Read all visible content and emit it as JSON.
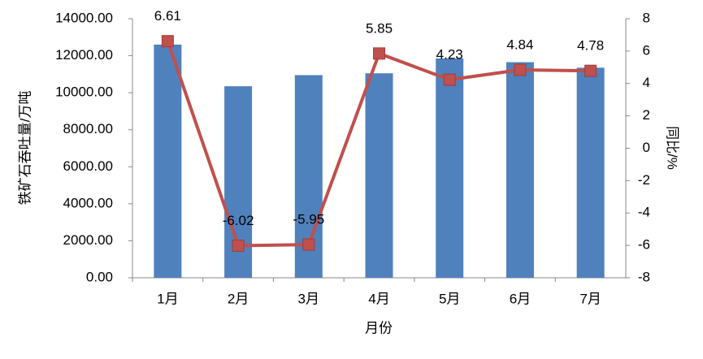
{
  "chart_data": {
    "type": "bar-line",
    "x_label": "月份",
    "y_label": "铁矿石吞吐量/万吨",
    "y2_label": "同比/%",
    "categories": [
      "1月",
      "2月",
      "3月",
      "4月",
      "5月",
      "6月",
      "7月"
    ],
    "series": [
      {
        "type": "bar",
        "color": "#4f81bd",
        "values": [
          12600,
          10350,
          10950,
          11050,
          11850,
          11650,
          11350
        ]
      },
      {
        "type": "line",
        "axis": "y2",
        "color": "#c0504d",
        "values": [
          6.61,
          -6.02,
          -5.95,
          5.85,
          4.23,
          4.84,
          4.78
        ]
      }
    ],
    "ylim": [
      0,
      14000
    ],
    "yticks": [
      {
        "value": 0,
        "label": "0.00"
      },
      {
        "value": 2000,
        "label": "2000.00"
      },
      {
        "value": 4000,
        "label": "4000.00"
      },
      {
        "value": 6000,
        "label": "6000.00"
      },
      {
        "value": 8000,
        "label": "8000.00"
      },
      {
        "value": 10000,
        "label": "10000.00"
      },
      {
        "value": 12000,
        "label": "12000.00"
      },
      {
        "value": 14000,
        "label": "14000.00"
      }
    ],
    "y2lim": [
      -8,
      8
    ],
    "y2ticks": [
      -8,
      -6,
      -4,
      -2,
      0,
      2,
      4,
      6,
      8
    ]
  }
}
